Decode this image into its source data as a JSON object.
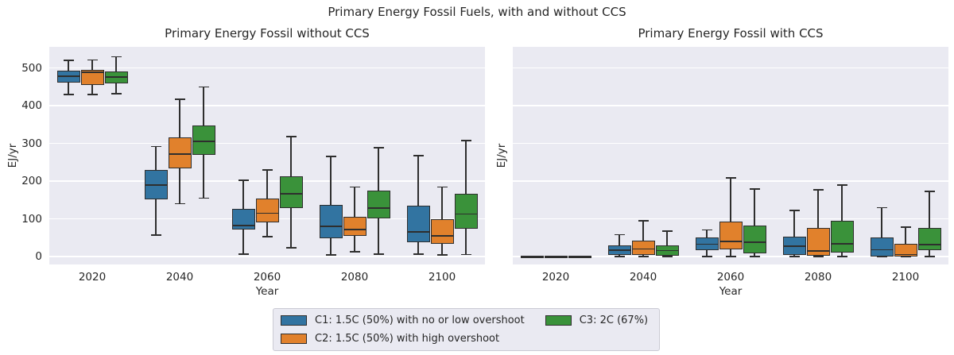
{
  "suptitle": "Primary Energy Fossil Fuels, with and without CCS",
  "colors": {
    "figure_background": "#ffffff",
    "axes_background": "#eaeaf2",
    "gridline": "#ffffff",
    "box_edge": "#2e2e2e",
    "text": "#262626",
    "legend_border": "#cacad4",
    "c1_blue": "#3274a1",
    "c2_orange": "#e1812c",
    "c3_green": "#3a923a"
  },
  "legend": {
    "position": "bottom-center",
    "items": [
      {
        "id": "C1",
        "label": "C1: 1.5C (50%) with no or low overshoot",
        "color": "#3274a1"
      },
      {
        "id": "C2",
        "label": "C2: 1.5C (50%) with high overshoot",
        "color": "#e1812c"
      },
      {
        "id": "C3",
        "label": "C3: 2C (67%)",
        "color": "#3a923a"
      }
    ]
  },
  "chart_data": [
    {
      "type": "boxplot",
      "title": "Primary Energy Fossil without CCS",
      "xlabel": "Year",
      "ylabel": "EJ/yr",
      "categories": [
        "2020",
        "2040",
        "2060",
        "2080",
        "2100"
      ],
      "yticks": [
        0,
        100,
        200,
        300,
        400,
        500
      ],
      "ylim": [
        -21,
        556
      ],
      "grid": true,
      "box_keys": [
        "whisker_low",
        "q1",
        "median",
        "q3",
        "whisker_high"
      ],
      "series": [
        {
          "name": "C1: 1.5C (50%) with no or low overshoot",
          "color": "#3274a1",
          "boxes": [
            [
              430,
              460,
              478,
              492,
              520
            ],
            [
              57,
              152,
              190,
              230,
              292
            ],
            [
              6,
              71,
              82,
              126,
              202
            ],
            [
              4,
              48,
              80,
              137,
              265
            ],
            [
              6,
              38,
              65,
              135,
              267
            ]
          ]
        },
        {
          "name": "C2: 1.5C (50%) with high overshoot",
          "color": "#e1812c",
          "boxes": [
            [
              430,
              455,
              488,
              494,
              521
            ],
            [
              140,
              233,
              271,
              316,
              417
            ],
            [
              53,
              90,
              115,
              153,
              229
            ],
            [
              13,
              55,
              71,
              105,
              184
            ],
            [
              4,
              33,
              55,
              99,
              184
            ]
          ]
        },
        {
          "name": "C3: 2C (67%)",
          "color": "#3a923a",
          "boxes": [
            [
              432,
              459,
              476,
              491,
              529
            ],
            [
              155,
              269,
              305,
              348,
              450
            ],
            [
              23,
              128,
              166,
              213,
              318
            ],
            [
              6,
              100,
              128,
              174,
              288
            ],
            [
              5,
              74,
              113,
              166,
              307
            ]
          ]
        }
      ]
    },
    {
      "type": "boxplot",
      "title": "Primary Energy Fossil with CCS",
      "xlabel": "Year",
      "ylabel": "EJ/yr",
      "categories": [
        "2020",
        "2040",
        "2060",
        "2080",
        "2100"
      ],
      "yticks": [
        0,
        100,
        200,
        300,
        400,
        500
      ],
      "ylim": [
        -21,
        556
      ],
      "grid": true,
      "box_keys": [
        "whisker_low",
        "q1",
        "median",
        "q3",
        "whisker_high"
      ],
      "series": [
        {
          "name": "C1: 1.5C (50%) with no or low overshoot",
          "color": "#3274a1",
          "boxes": [
            [
              1,
              1,
              1,
              1,
              1
            ],
            [
              0,
              5,
              17,
              30,
              58
            ],
            [
              0,
              17,
              33,
              50,
              71
            ],
            [
              0,
              4,
              27,
              53,
              122
            ],
            [
              0,
              0,
              18,
              51,
              129
            ]
          ]
        },
        {
          "name": "C2: 1.5C (50%) with high overshoot",
          "color": "#e1812c",
          "boxes": [
            [
              1,
              1,
              1,
              1,
              1
            ],
            [
              0,
              4,
              20,
              42,
              95
            ],
            [
              0,
              19,
              40,
              93,
              208
            ],
            [
              0,
              2,
              15,
              76,
              177
            ],
            [
              0,
              0,
              5,
              33,
              78
            ]
          ]
        },
        {
          "name": "C3: 2C (67%)",
          "color": "#3a923a",
          "boxes": [
            [
              1,
              1,
              1,
              1,
              1
            ],
            [
              0,
              2,
              16,
              29,
              67
            ],
            [
              0,
              9,
              38,
              83,
              179
            ],
            [
              0,
              11,
              34,
              95,
              190
            ],
            [
              0,
              16,
              31,
              75,
              173
            ]
          ]
        }
      ]
    }
  ]
}
